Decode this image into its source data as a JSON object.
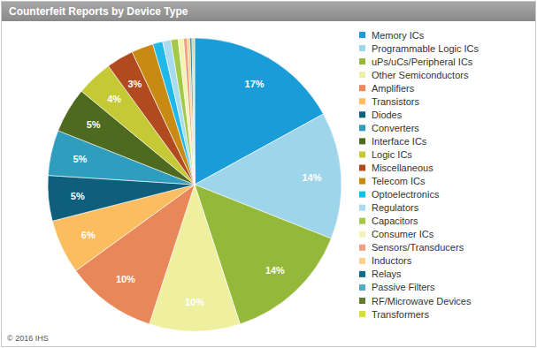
{
  "chart_data": {
    "type": "pie",
    "title": "Counterfeit Reports by Device Type",
    "source": "© 2016 IHS",
    "categories": [
      "Memory ICs",
      "Programmable Logic ICs",
      "uPs/uCs/Peripheral ICs",
      "Other Semiconductors",
      "Amplifiers",
      "Transistors",
      "Diodes",
      "Converters",
      "Interface ICs",
      "Logic ICs",
      "Miscellaneous",
      "Telecom ICs",
      "Optoelectronics",
      "Regulators",
      "Capacitors",
      "Consumer ICs",
      "Sensors/Transducers",
      "Inductors",
      "Relays",
      "Passive Filters",
      "RF/Microwave Devices",
      "Transformers"
    ],
    "values": [
      17,
      14,
      14,
      10,
      10,
      6,
      5,
      5,
      5,
      4,
      3,
      2.4,
      1.1,
      0.9,
      0.8,
      0.6,
      0.4,
      0.3,
      0.2,
      0.1,
      0.1,
      0.1
    ],
    "value_labels": [
      "17%",
      "14%",
      "14%",
      "10%",
      "10%",
      "6%",
      "5%",
      "5%",
      "5%",
      "4%",
      "3%",
      null,
      null,
      null,
      null,
      null,
      null,
      null,
      null,
      null,
      null,
      null
    ],
    "colors": [
      "#1a9cd8",
      "#9dd5ea",
      "#94b93a",
      "#eef0a0",
      "#e8875a",
      "#fbbd5f",
      "#0d5f7b",
      "#2f9dbd",
      "#4d6a1f",
      "#c5c935",
      "#b24a1f",
      "#c98a13",
      "#1fb8e8",
      "#a8dbee",
      "#a3c94a",
      "#f3f3b3",
      "#f0a07e",
      "#fcd08a",
      "#0f6d8a",
      "#4eacc8",
      "#5e7f2a",
      "#d7db4a"
    ],
    "data_labels": true,
    "legend": "right"
  }
}
